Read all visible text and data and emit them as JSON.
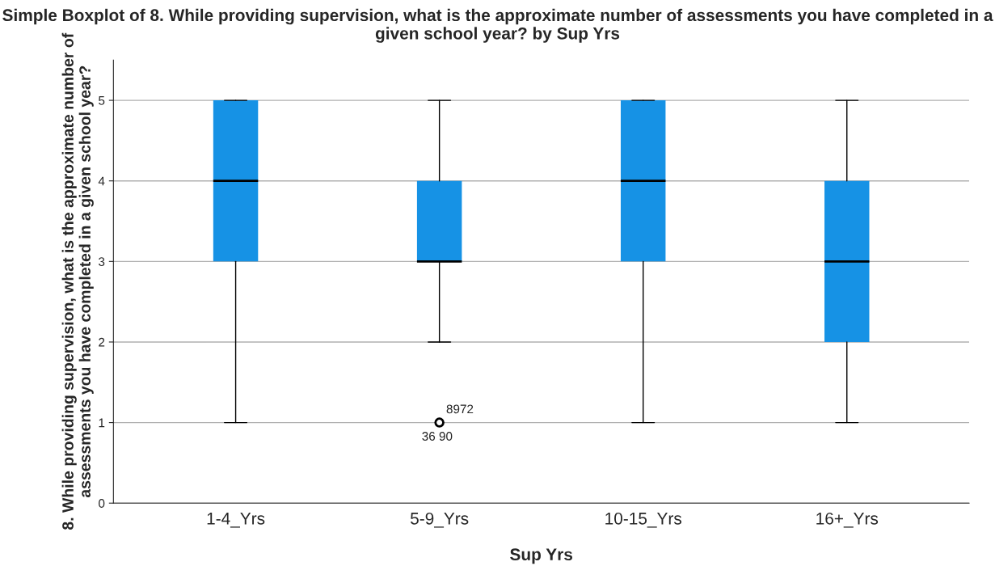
{
  "chart_data": {
    "type": "box",
    "title": "Simple Boxplot of 8. While providing supervision, what is the approximate number of assessments you have completed in a given school year? by Sup Yrs",
    "xlabel": "Sup Yrs",
    "ylabel": "8. While providing supervision, what is the approximate number of assessments you have completed in a given school year?",
    "categories": [
      "1-4_Yrs",
      "5-9_Yrs",
      "10-15_Yrs",
      "16+_Yrs"
    ],
    "color": "#1692e5",
    "boxes": [
      {
        "low": 1,
        "q1": 3,
        "median": 4,
        "q3": 5,
        "high": 5
      },
      {
        "low": 2,
        "q1": 3,
        "median": 3,
        "q3": 4,
        "high": 5,
        "outliers": [
          1
        ]
      },
      {
        "low": 1,
        "q1": 3,
        "median": 4,
        "q3": 5,
        "high": 5
      },
      {
        "low": 1,
        "q1": 2,
        "median": 3,
        "q3": 4,
        "high": 5
      }
    ],
    "ylim": [
      0,
      5.5
    ],
    "yticks": [
      0,
      1,
      2,
      3,
      4,
      5
    ],
    "grid": "y",
    "annotations": [
      "8972",
      "36 90"
    ]
  }
}
